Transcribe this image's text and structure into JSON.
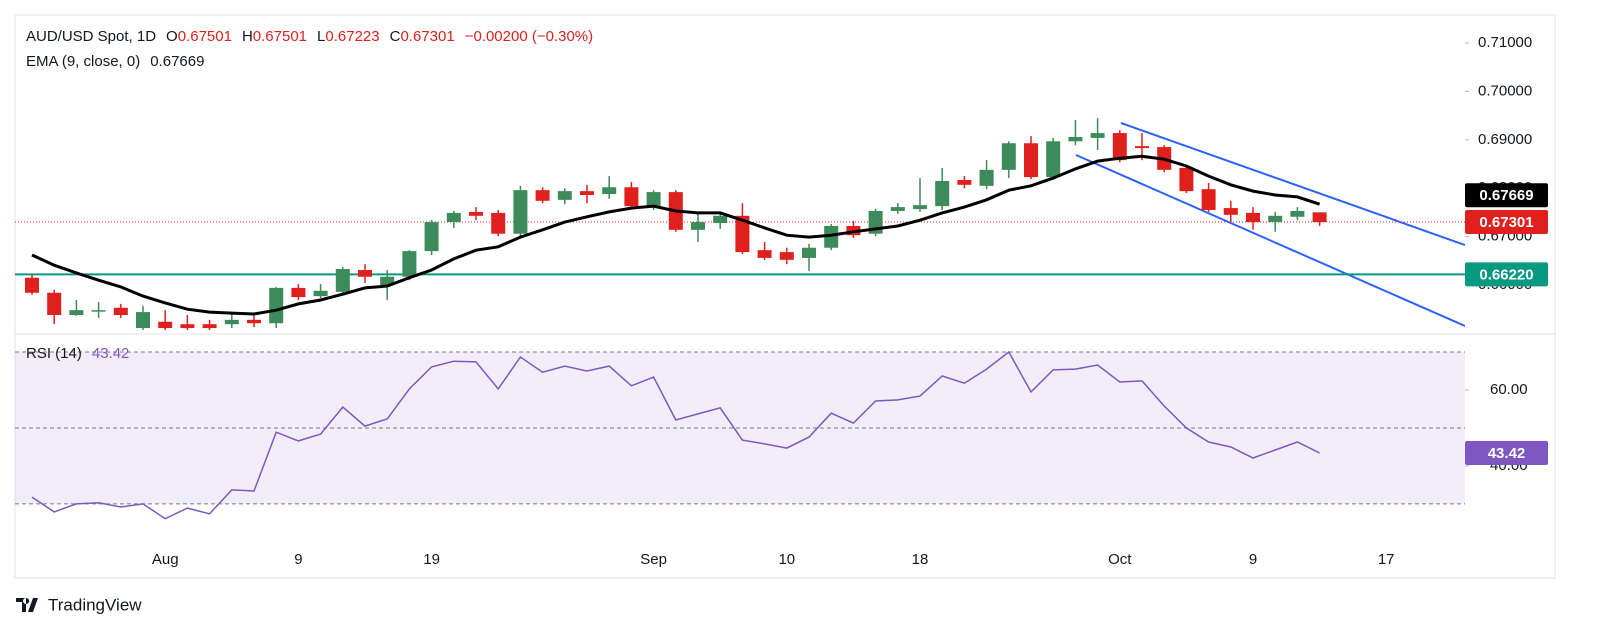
{
  "chart_data": {
    "type": "candlestick",
    "title": "AUD/USD Spot, 1D",
    "ohlc_prefixes": [
      "O",
      "H",
      "L",
      "C"
    ],
    "change_label": "−0.00200 (−0.30%)",
    "categories": [
      null,
      null,
      null,
      null,
      null,
      null,
      "Aug",
      null,
      null,
      null,
      null,
      null,
      "9",
      null,
      null,
      null,
      null,
      null,
      "19",
      null,
      null,
      null,
      null,
      null,
      null,
      null,
      null,
      null,
      "Sep",
      null,
      null,
      null,
      null,
      null,
      "10",
      null,
      null,
      null,
      null,
      null,
      "18",
      null,
      null,
      null,
      null,
      null,
      null,
      null,
      null,
      "Oct",
      null,
      null,
      null,
      null,
      null,
      "9",
      null,
      null,
      null,
      null,
      null,
      "17"
    ],
    "open": [
      0.6615,
      0.6584,
      0.6538,
      0.6546,
      0.6553,
      0.6511,
      0.6524,
      0.6519,
      0.6519,
      0.6519,
      0.6528,
      0.6521,
      0.6594,
      0.6577,
      0.6586,
      0.6631,
      0.66,
      0.6617,
      0.667,
      0.673,
      0.6751,
      0.6749,
      0.6706,
      0.6796,
      0.6776,
      0.6794,
      0.6788,
      0.6802,
      0.6763,
      0.6792,
      0.6714,
      0.6728,
      0.6743,
      0.6672,
      0.6668,
      0.6656,
      0.6677,
      0.6722,
      0.6706,
      0.6753,
      0.6757,
      0.6763,
      0.6817,
      0.6805,
      0.6838,
      0.6893,
      0.6823,
      0.6897,
      0.6904,
      0.6914,
      0.6887,
      0.6885,
      0.6842,
      0.6798,
      0.6759,
      0.6749,
      0.673,
      0.6741,
      0.67501,
      null,
      null,
      null
    ],
    "high": [
      0.6621,
      0.659,
      0.6569,
      0.6565,
      0.6561,
      0.6557,
      0.6548,
      0.6538,
      0.6528,
      0.6544,
      0.6538,
      0.6596,
      0.6602,
      0.6602,
      0.6637,
      0.6643,
      0.6631,
      0.6672,
      0.6734,
      0.6753,
      0.6761,
      0.6755,
      0.6805,
      0.6802,
      0.68,
      0.6807,
      0.6825,
      0.6813,
      0.6796,
      0.6796,
      0.6751,
      0.6751,
      0.6769,
      0.6689,
      0.6677,
      0.6685,
      0.6726,
      0.6732,
      0.6757,
      0.6769,
      0.6821,
      0.6842,
      0.6825,
      0.6858,
      0.6897,
      0.6908,
      0.6904,
      0.6941,
      0.6945,
      0.692,
      0.6914,
      0.6889,
      0.6848,
      0.6811,
      0.6774,
      0.6761,
      0.6751,
      0.6761,
      0.67501,
      null,
      null,
      null
    ],
    "low": [
      0.658,
      0.6519,
      0.6536,
      0.6532,
      0.6532,
      0.6507,
      0.6507,
      0.6507,
      0.6507,
      0.6511,
      0.6513,
      0.6511,
      0.6569,
      0.6573,
      0.6581,
      0.6604,
      0.6569,
      0.661,
      0.6662,
      0.6718,
      0.6734,
      0.6701,
      0.6699,
      0.6769,
      0.6767,
      0.6769,
      0.6778,
      0.6759,
      0.6755,
      0.671,
      0.6689,
      0.6716,
      0.6664,
      0.6652,
      0.6643,
      0.6629,
      0.6672,
      0.6697,
      0.6701,
      0.6747,
      0.6751,
      0.6755,
      0.68,
      0.6798,
      0.6821,
      0.6819,
      0.6817,
      0.6889,
      0.6879,
      0.6854,
      0.6858,
      0.6833,
      0.679,
      0.6751,
      0.673,
      0.6714,
      0.671,
      0.6734,
      0.67223,
      null,
      null,
      null
    ],
    "close": [
      0.6584,
      0.6538,
      0.6548,
      0.6548,
      0.6538,
      0.6544,
      0.6511,
      0.6511,
      0.6511,
      0.6528,
      0.6521,
      0.6594,
      0.6575,
      0.6588,
      0.6633,
      0.6617,
      0.6617,
      0.667,
      0.673,
      0.6749,
      0.6743,
      0.6706,
      0.6796,
      0.6774,
      0.6794,
      0.6786,
      0.6802,
      0.6763,
      0.6792,
      0.6714,
      0.673,
      0.6743,
      0.6668,
      0.6656,
      0.6652,
      0.6677,
      0.6722,
      0.6703,
      0.6753,
      0.6761,
      0.6765,
      0.6815,
      0.6807,
      0.6838,
      0.6893,
      0.6823,
      0.6897,
      0.6906,
      0.6914,
      0.6858,
      0.6883,
      0.6838,
      0.6794,
      0.6755,
      0.6745,
      0.673,
      0.6743,
      0.6753,
      0.67301,
      null,
      null,
      null
    ],
    "up_color": "#3d8a5a",
    "down_color": "#e0201c",
    "ylim": [
      0.6507,
      0.7158
    ],
    "yticks": [
      {
        "value": 0.71,
        "label": "0.71000"
      },
      {
        "value": 0.7,
        "label": "0.70000"
      },
      {
        "value": 0.69,
        "label": "0.69000"
      },
      {
        "value": 0.68,
        "label": "0.68000"
      },
      {
        "value": 0.67,
        "label": "0.67000"
      },
      {
        "value": 0.66,
        "label": "0.66000"
      }
    ],
    "ema": {
      "name": "EMA (9, close, 0)",
      "color": "#000000",
      "values": [
        0.6662,
        0.6641,
        0.6625,
        0.661,
        0.6596,
        0.6577,
        0.6563,
        0.655,
        0.6544,
        0.6542,
        0.654,
        0.6548,
        0.6561,
        0.6569,
        0.6581,
        0.6594,
        0.6598,
        0.6615,
        0.6631,
        0.6654,
        0.6672,
        0.6679,
        0.6699,
        0.6714,
        0.673,
        0.6741,
        0.6751,
        0.6759,
        0.6763,
        0.6753,
        0.6749,
        0.6749,
        0.6734,
        0.6718,
        0.6703,
        0.6699,
        0.6703,
        0.671,
        0.6716,
        0.6722,
        0.6734,
        0.6749,
        0.6761,
        0.6776,
        0.6796,
        0.6805,
        0.6821,
        0.684,
        0.6856,
        0.6862,
        0.6866,
        0.686,
        0.6846,
        0.6825,
        0.6807,
        0.6794,
        0.6786,
        0.6782,
        0.67669,
        null,
        null,
        null
      ]
    },
    "support": {
      "value": 0.6622,
      "label": "0.66220",
      "color": "#089981"
    },
    "rsi": {
      "name": "RSI (14)",
      "color": "#7e57c2",
      "values": [
        31.8,
        27.9,
        30.0,
        30.3,
        29.2,
        30.0,
        26.1,
        28.9,
        27.4,
        33.7,
        33.4,
        48.9,
        46.6,
        48.4,
        55.5,
        50.5,
        52.4,
        60.3,
        66.1,
        67.6,
        67.4,
        60.3,
        68.7,
        64.7,
        66.3,
        65.0,
        66.3,
        61.1,
        63.4,
        52.1,
        53.7,
        55.3,
        46.8,
        45.8,
        44.7,
        47.6,
        53.9,
        51.3,
        57.1,
        57.4,
        58.4,
        63.7,
        61.8,
        65.5,
        70.0,
        59.5,
        65.3,
        65.5,
        66.6,
        62.1,
        62.4,
        55.8,
        50.0,
        46.3,
        45.0,
        42.1,
        44.2,
        46.3,
        43.42,
        null,
        null,
        null
      ],
      "ylim": [
        20.5,
        73.7
      ],
      "yticks": [
        {
          "value": 60,
          "label": "60.00"
        },
        {
          "value": 40,
          "label": "40.00"
        }
      ],
      "levels": [
        30,
        50,
        70
      ]
    },
    "brand": "TradingView"
  }
}
